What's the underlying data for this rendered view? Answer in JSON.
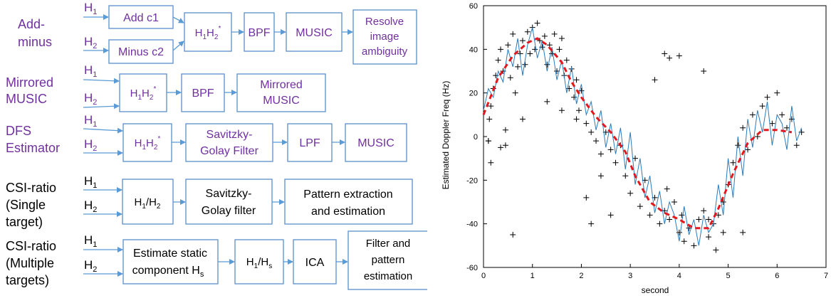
{
  "colors": {
    "purple": "#7030a0",
    "box_border": "#5b8fc9",
    "arrow": "#5b9bd5",
    "trace": "#2b7bba",
    "fit": "#e3181e"
  },
  "rows": [
    {
      "label": [
        "Add-",
        "minus"
      ],
      "label_color": "purple",
      "inputs": [
        {
          "sym": "H",
          "sub": "1"
        },
        {
          "sym": "H",
          "sub": "2"
        }
      ],
      "boxes": {
        "add": "Add c1",
        "minus": "Minus c2",
        "mult": {
          "a": "H",
          "a_sub": "1",
          "b": "H",
          "b_sub": "2",
          "sup": "*"
        },
        "bpf": "BPF",
        "music": "MUSIC",
        "resolve": [
          "Resolve",
          "image",
          "ambiguity"
        ]
      }
    },
    {
      "label": [
        "Mirrored",
        "MUSIC"
      ],
      "label_color": "purple",
      "inputs": [
        {
          "sym": "H",
          "sub": "1"
        },
        {
          "sym": "H",
          "sub": "2"
        }
      ],
      "boxes": {
        "mult": {
          "a": "H",
          "a_sub": "1",
          "b": "H",
          "b_sub": "2",
          "sup": "*"
        },
        "bpf": "BPF",
        "mirrored": [
          "Mirrored",
          "MUSIC"
        ]
      }
    },
    {
      "label": [
        "DFS",
        "Estimator"
      ],
      "label_color": "purple",
      "inputs": [
        {
          "sym": "H",
          "sub": "1"
        },
        {
          "sym": "H",
          "sub": "2"
        }
      ],
      "boxes": {
        "mult": {
          "a": "H",
          "a_sub": "1",
          "b": "H",
          "b_sub": "2",
          "sup": "*"
        },
        "sg": [
          "Savitzky-",
          "Golay Filter"
        ],
        "lpf": "LPF",
        "music": "MUSIC"
      }
    },
    {
      "label": [
        "CSI-ratio",
        "(Single",
        "target)"
      ],
      "label_color": "black",
      "inputs": [
        {
          "sym": "H",
          "sub": "1"
        },
        {
          "sym": "H",
          "sub": "2"
        }
      ],
      "boxes": {
        "ratio": {
          "a": "H",
          "a_sub": "1",
          "b": "H",
          "b_sub": "2"
        },
        "sg": [
          "Savitzky-",
          "Golay filter"
        ],
        "pattern": [
          "Pattern extraction",
          "and estimation"
        ]
      }
    },
    {
      "label": [
        "CSI-ratio",
        "(Multiple",
        "targets)"
      ],
      "label_color": "black",
      "inputs": [
        {
          "sym": "H",
          "sub": "1"
        },
        {
          "sym": "H",
          "sub": "2"
        }
      ],
      "boxes": {
        "static": {
          "line1": "Estimate static",
          "line2": "component H",
          "sub": "s"
        },
        "ratio": {
          "a": "H",
          "a_sub": "1",
          "b": "H",
          "b_sub": "s"
        },
        "ica": "ICA",
        "filter": [
          "Filter and",
          "pattern",
          "estimation"
        ]
      }
    }
  ],
  "chart_data": {
    "type": "scatter",
    "title": "",
    "xlabel": "second",
    "ylabel": "Estimated Doppler Freq (Hz)",
    "xlim": [
      0,
      7
    ],
    "ylim": [
      -60,
      60
    ],
    "xticks": [
      0,
      1,
      2,
      3,
      4,
      5,
      6,
      7
    ],
    "yticks": [
      -60,
      -40,
      -20,
      0,
      20,
      40,
      60
    ],
    "grid": false,
    "fit": {
      "x": [
        0,
        0.3,
        0.6,
        0.9,
        1.1,
        1.3,
        1.6,
        1.8,
        2.0,
        2.3,
        2.6,
        2.9,
        3.1,
        3.4,
        3.7,
        4.0,
        4.3,
        4.6,
        4.8,
        5.1,
        5.4,
        5.7,
        6.0,
        6.3
      ],
      "y": [
        10,
        27,
        37,
        43,
        45,
        42,
        34,
        25,
        18,
        9,
        2,
        -7,
        -18,
        -30,
        -35,
        -38,
        -42,
        -42,
        -33,
        -17,
        -3,
        3,
        3,
        2
      ]
    },
    "trace": {
      "x": [
        0,
        0.1,
        0.2,
        0.3,
        0.4,
        0.5,
        0.6,
        0.7,
        0.8,
        0.9,
        1.0,
        1.1,
        1.2,
        1.3,
        1.4,
        1.5,
        1.6,
        1.7,
        1.8,
        1.9,
        2.0,
        2.1,
        2.2,
        2.3,
        2.4,
        2.5,
        2.6,
        2.7,
        2.8,
        2.9,
        3.0,
        3.1,
        3.2,
        3.3,
        3.4,
        3.5,
        3.6,
        3.7,
        3.8,
        3.9,
        4.0,
        4.1,
        4.2,
        4.3,
        4.4,
        4.5,
        4.6,
        4.7,
        4.8,
        4.9,
        5.0,
        5.1,
        5.2,
        5.3,
        5.4,
        5.5,
        5.6,
        5.7,
        5.8,
        5.9,
        6.0,
        6.1,
        6.2,
        6.3,
        6.4,
        6.5
      ],
      "y": [
        12,
        22,
        18,
        30,
        25,
        40,
        32,
        45,
        28,
        42,
        50,
        36,
        44,
        30,
        41,
        26,
        35,
        20,
        32,
        15,
        24,
        10,
        16,
        3,
        12,
        -5,
        6,
        -8,
        4,
        -15,
        2,
        -22,
        -10,
        -28,
        -18,
        -35,
        -25,
        -40,
        -30,
        -36,
        -48,
        -32,
        -45,
        -38,
        -50,
        -36,
        -44,
        -40,
        -22,
        -36,
        -10,
        -28,
        0,
        -18,
        8,
        -5,
        12,
        2,
        16,
        -4,
        10,
        6,
        -6,
        14,
        -2,
        4
      ]
    },
    "scatter": {
      "x": [
        0.1,
        0.12,
        0.15,
        0.2,
        0.25,
        0.3,
        0.35,
        0.4,
        0.45,
        0.5,
        0.55,
        0.6,
        0.65,
        0.7,
        0.75,
        0.8,
        0.85,
        0.9,
        0.95,
        1.0,
        1.05,
        1.1,
        1.15,
        1.2,
        1.25,
        1.3,
        1.35,
        1.4,
        1.45,
        1.5,
        1.55,
        1.6,
        1.65,
        1.7,
        1.75,
        1.8,
        1.85,
        1.9,
        1.95,
        2.0,
        2.1,
        2.2,
        2.3,
        2.4,
        2.5,
        2.6,
        2.7,
        2.8,
        2.9,
        3.0,
        3.1,
        3.2,
        3.3,
        3.4,
        3.5,
        3.6,
        3.7,
        3.75,
        3.8,
        3.9,
        4.0,
        4.05,
        4.1,
        4.2,
        4.3,
        4.4,
        4.5,
        4.6,
        4.7,
        4.75,
        4.8,
        4.9,
        5.0,
        5.1,
        5.2,
        5.3,
        5.4,
        5.5,
        5.6,
        5.7,
        5.8,
        5.9,
        6.0,
        6.1,
        6.2,
        6.3,
        6.4,
        6.5,
        0.15,
        0.6,
        0.8,
        1.6,
        2.1,
        2.4,
        2.6,
        3.5,
        3.7,
        3.8,
        4.0,
        4.5,
        4.6,
        5.3,
        4.9,
        0.1,
        0.35,
        0.45,
        1.3,
        1.9,
        2.2
      ],
      "y": [
        -2,
        8,
        -12,
        22,
        28,
        35,
        40,
        30,
        3,
        42,
        27,
        47,
        20,
        32,
        38,
        44,
        33,
        48,
        38,
        50,
        40,
        52,
        44,
        41,
        46,
        33,
        42,
        38,
        47,
        30,
        40,
        45,
        28,
        35,
        22,
        31,
        18,
        26,
        12,
        21,
        6,
        2,
        -2,
        -8,
        2,
        -6,
        -12,
        -4,
        -18,
        -26,
        -10,
        -32,
        -20,
        -36,
        -28,
        -40,
        -34,
        -24,
        -38,
        -30,
        -44,
        -36,
        -48,
        -42,
        -50,
        -38,
        -34,
        -46,
        -40,
        -52,
        -36,
        -30,
        -22,
        -12,
        -4,
        4,
        -6,
        10,
        0,
        14,
        18,
        6,
        20,
        10,
        4,
        8,
        -4,
        2,
        14,
        -45,
        8,
        12,
        -28,
        -18,
        -36,
        26,
        38,
        36,
        37,
        30,
        -38,
        -44,
        -44,
        -2,
        -5,
        -4,
        16,
        8,
        -40
      ],
      "annotation": ""
    }
  }
}
